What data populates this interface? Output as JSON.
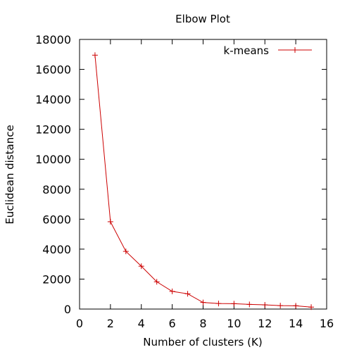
{
  "chart_data": {
    "type": "line",
    "title": "Elbow Plot",
    "xlabel": "Number of clusters (K)",
    "ylabel": "Euclidean distance",
    "xlim": [
      0,
      16
    ],
    "ylim": [
      0,
      18000
    ],
    "xticks": [
      "0",
      "2",
      "4",
      "6",
      "8",
      "10",
      "12",
      "14",
      "16"
    ],
    "yticks": [
      "0",
      "2000",
      "4000",
      "6000",
      "8000",
      "10000",
      "12000",
      "14000",
      "16000",
      "18000"
    ],
    "grid": false,
    "legend_position": "top-right",
    "series": [
      {
        "name": "k-means",
        "color": "#cc0000",
        "marker": "plus",
        "x": [
          1,
          2,
          3,
          4,
          5,
          6,
          7,
          8,
          9,
          10,
          11,
          12,
          13,
          14,
          15
        ],
        "y": [
          16950,
          5830,
          3850,
          2860,
          1820,
          1180,
          1020,
          440,
          370,
          360,
          310,
          280,
          230,
          220,
          130
        ]
      }
    ]
  }
}
